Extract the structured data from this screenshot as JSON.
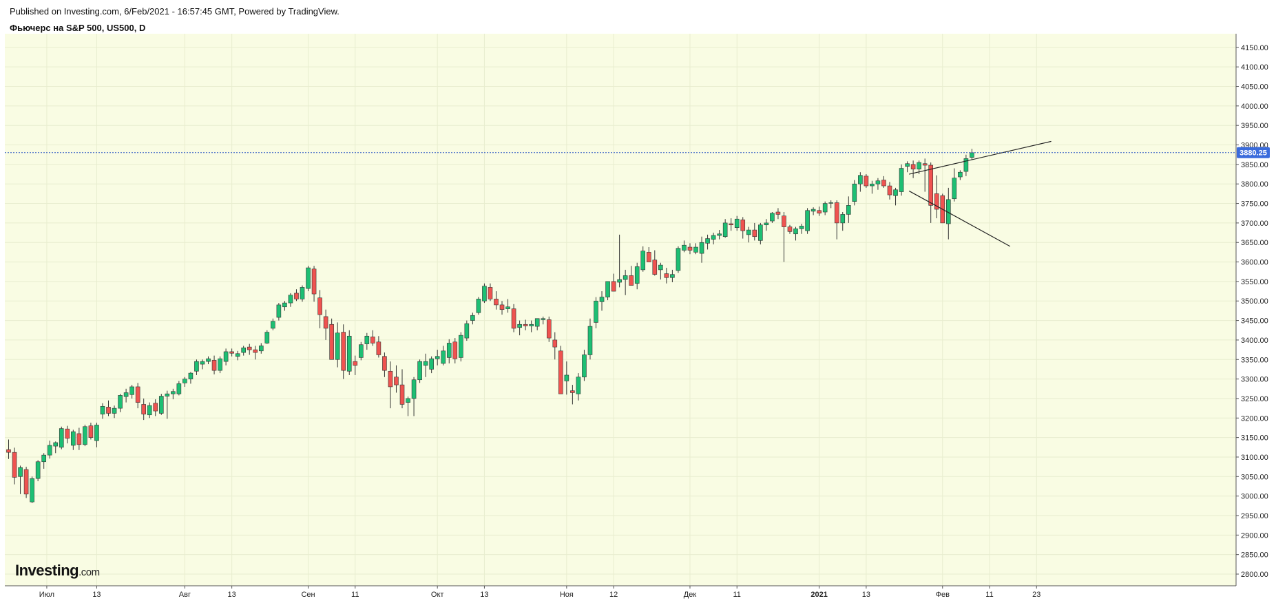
{
  "header": {
    "published": "Published on Investing.com, 6/Feb/2021 - 16:57:45 GMT, Powered by TradingView.",
    "instrument": "Фьючерс на S&P 500, US500, D"
  },
  "logo": {
    "main": "Investing",
    "suffix": ".com"
  },
  "colors": {
    "background": "#f9fce3",
    "up": "#1dbf73",
    "down": "#ef5350",
    "wick": "#333333",
    "price_line": "#2f59c4",
    "price_label_bg": "#3a6bdc",
    "trendline": "#222222",
    "grid": "#e8edcf"
  },
  "chart_data": {
    "type": "candlestick",
    "title": "Фьючерс на S&P 500, US500, D",
    "y_axis": {
      "min": 2770,
      "max": 4185,
      "ticks": [
        2800,
        2850,
        2900,
        2950,
        3000,
        3050,
        3100,
        3150,
        3200,
        3250,
        3300,
        3350,
        3400,
        3450,
        3500,
        3550,
        3600,
        3650,
        3700,
        3750,
        3800,
        3850,
        3900,
        3950,
        4000,
        4050,
        4100,
        4150
      ],
      "tick_labels": [
        "2800.00",
        "2850.00",
        "2900.00",
        "2950.00",
        "3000.00",
        "3050.00",
        "3100.00",
        "3150.00",
        "3200.00",
        "3250.00",
        "3300.00",
        "3350.00",
        "3400.00",
        "3450.00",
        "3500.00",
        "3550.00",
        "3600.00",
        "3650.00",
        "3700.00",
        "3750.00",
        "3800.00",
        "3850.00",
        "3900.00",
        "3950.00",
        "4000.00",
        "4050.00",
        "4100.00",
        "4150.00"
      ]
    },
    "x_axis": {
      "labels": [
        {
          "text": "Июл",
          "index": 6.5,
          "bold": false
        },
        {
          "text": "13",
          "index": 15,
          "bold": false
        },
        {
          "text": "Авг",
          "index": 30,
          "bold": false
        },
        {
          "text": "13",
          "index": 38,
          "bold": false
        },
        {
          "text": "Сен",
          "index": 51,
          "bold": false
        },
        {
          "text": "11",
          "index": 59,
          "bold": false
        },
        {
          "text": "Окт",
          "index": 73,
          "bold": false
        },
        {
          "text": "13",
          "index": 81,
          "bold": false
        },
        {
          "text": "Ноя",
          "index": 95,
          "bold": false
        },
        {
          "text": "12",
          "index": 103,
          "bold": false
        },
        {
          "text": "Дек",
          "index": 116,
          "bold": false
        },
        {
          "text": "11",
          "index": 124,
          "bold": false
        },
        {
          "text": "2021",
          "index": 138,
          "bold": true
        },
        {
          "text": "13",
          "index": 146,
          "bold": false
        },
        {
          "text": "Фев",
          "index": 159,
          "bold": false
        },
        {
          "text": "11",
          "index": 167,
          "bold": false
        },
        {
          "text": "23",
          "index": 175,
          "bold": false
        }
      ]
    },
    "last_price": 3880.25,
    "last_price_label": "3880.25",
    "candles": [
      [
        3119,
        3145,
        3095,
        3112
      ],
      [
        3112,
        3124,
        3030,
        3048
      ],
      [
        3050,
        3078,
        3005,
        3073
      ],
      [
        3068,
        3075,
        2995,
        3005
      ],
      [
        2985,
        3050,
        2982,
        3045
      ],
      [
        3045,
        3092,
        3038,
        3088
      ],
      [
        3088,
        3110,
        3070,
        3105
      ],
      [
        3105,
        3142,
        3096,
        3130
      ],
      [
        3128,
        3140,
        3110,
        3137
      ],
      [
        3125,
        3178,
        3120,
        3173
      ],
      [
        3172,
        3180,
        3135,
        3148
      ],
      [
        3130,
        3170,
        3118,
        3165
      ],
      [
        3160,
        3175,
        3118,
        3132
      ],
      [
        3132,
        3183,
        3128,
        3178
      ],
      [
        3180,
        3188,
        3145,
        3150
      ],
      [
        3142,
        3188,
        3125,
        3182
      ],
      [
        3210,
        3238,
        3198,
        3230
      ],
      [
        3228,
        3245,
        3205,
        3212
      ],
      [
        3212,
        3232,
        3200,
        3225
      ],
      [
        3225,
        3262,
        3215,
        3258
      ],
      [
        3255,
        3275,
        3240,
        3265
      ],
      [
        3260,
        3285,
        3250,
        3280
      ],
      [
        3280,
        3290,
        3225,
        3240
      ],
      [
        3235,
        3250,
        3195,
        3210
      ],
      [
        3208,
        3240,
        3200,
        3232
      ],
      [
        3238,
        3248,
        3205,
        3218
      ],
      [
        3212,
        3262,
        3208,
        3256
      ],
      [
        3256,
        3270,
        3198,
        3262
      ],
      [
        3262,
        3275,
        3248,
        3268
      ],
      [
        3262,
        3295,
        3258,
        3288
      ],
      [
        3290,
        3305,
        3280,
        3300
      ],
      [
        3300,
        3318,
        3288,
        3315
      ],
      [
        3320,
        3350,
        3310,
        3345
      ],
      [
        3338,
        3350,
        3325,
        3345
      ],
      [
        3345,
        3358,
        3338,
        3352
      ],
      [
        3348,
        3360,
        3312,
        3322
      ],
      [
        3322,
        3358,
        3315,
        3352
      ],
      [
        3345,
        3378,
        3335,
        3370
      ],
      [
        3370,
        3378,
        3358,
        3366
      ],
      [
        3358,
        3372,
        3348,
        3365
      ],
      [
        3368,
        3385,
        3360,
        3380
      ],
      [
        3382,
        3390,
        3362,
        3375
      ],
      [
        3375,
        3385,
        3350,
        3368
      ],
      [
        3372,
        3392,
        3365,
        3385
      ],
      [
        3392,
        3425,
        3390,
        3420
      ],
      [
        3430,
        3455,
        3425,
        3448
      ],
      [
        3458,
        3495,
        3450,
        3490
      ],
      [
        3485,
        3500,
        3475,
        3495
      ],
      [
        3495,
        3520,
        3485,
        3515
      ],
      [
        3520,
        3530,
        3500,
        3505
      ],
      [
        3505,
        3540,
        3498,
        3535
      ],
      [
        3532,
        3590,
        3525,
        3585
      ],
      [
        3582,
        3590,
        3498,
        3518
      ],
      [
        3508,
        3528,
        3430,
        3465
      ],
      [
        3460,
        3478,
        3400,
        3430
      ],
      [
        3440,
        3455,
        3350,
        3350
      ],
      [
        3350,
        3445,
        3330,
        3418
      ],
      [
        3420,
        3440,
        3300,
        3322
      ],
      [
        3320,
        3425,
        3310,
        3410
      ],
      [
        3345,
        3360,
        3310,
        3335
      ],
      [
        3355,
        3395,
        3348,
        3388
      ],
      [
        3390,
        3418,
        3375,
        3410
      ],
      [
        3408,
        3425,
        3385,
        3392
      ],
      [
        3395,
        3410,
        3355,
        3362
      ],
      [
        3358,
        3368,
        3305,
        3322
      ],
      [
        3320,
        3345,
        3225,
        3280
      ],
      [
        3305,
        3335,
        3265,
        3285
      ],
      [
        3285,
        3325,
        3225,
        3235
      ],
      [
        3240,
        3255,
        3205,
        3250
      ],
      [
        3250,
        3305,
        3205,
        3298
      ],
      [
        3298,
        3350,
        3290,
        3345
      ],
      [
        3335,
        3365,
        3305,
        3345
      ],
      [
        3325,
        3358,
        3315,
        3352
      ],
      [
        3352,
        3375,
        3335,
        3358
      ],
      [
        3340,
        3385,
        3335,
        3372
      ],
      [
        3355,
        3402,
        3340,
        3392
      ],
      [
        3395,
        3405,
        3340,
        3352
      ],
      [
        3355,
        3420,
        3345,
        3412
      ],
      [
        3405,
        3450,
        3398,
        3442
      ],
      [
        3450,
        3470,
        3440,
        3463
      ],
      [
        3470,
        3510,
        3465,
        3505
      ],
      [
        3500,
        3545,
        3495,
        3538
      ],
      [
        3535,
        3545,
        3500,
        3505
      ],
      [
        3505,
        3525,
        3478,
        3490
      ],
      [
        3490,
        3500,
        3465,
        3478
      ],
      [
        3480,
        3505,
        3470,
        3485
      ],
      [
        3480,
        3492,
        3420,
        3430
      ],
      [
        3432,
        3450,
        3412,
        3440
      ],
      [
        3440,
        3452,
        3425,
        3436
      ],
      [
        3436,
        3450,
        3420,
        3440
      ],
      [
        3435,
        3455,
        3425,
        3455
      ],
      [
        3452,
        3460,
        3440,
        3455
      ],
      [
        3452,
        3460,
        3395,
        3405
      ],
      [
        3400,
        3420,
        3350,
        3382
      ],
      [
        3372,
        3385,
        3262,
        3262
      ],
      [
        3295,
        3345,
        3260,
        3310
      ],
      [
        3270,
        3285,
        3235,
        3265
      ],
      [
        3262,
        3315,
        3245,
        3305
      ],
      [
        3305,
        3375,
        3295,
        3362
      ],
      [
        3362,
        3455,
        3350,
        3435
      ],
      [
        3445,
        3510,
        3430,
        3500
      ],
      [
        3498,
        3525,
        3475,
        3510
      ],
      [
        3510,
        3550,
        3502,
        3550
      ],
      [
        3550,
        3570,
        3525,
        3525
      ],
      [
        3548,
        3670,
        3535,
        3555
      ],
      [
        3555,
        3580,
        3515,
        3565
      ],
      [
        3565,
        3590,
        3540,
        3540
      ],
      [
        3545,
        3598,
        3530,
        3588
      ],
      [
        3580,
        3640,
        3575,
        3628
      ],
      [
        3625,
        3638,
        3600,
        3600
      ],
      [
        3605,
        3630,
        3565,
        3568
      ],
      [
        3580,
        3598,
        3555,
        3592
      ],
      [
        3570,
        3585,
        3545,
        3560
      ],
      [
        3560,
        3580,
        3548,
        3568
      ],
      [
        3578,
        3640,
        3572,
        3635
      ],
      [
        3630,
        3655,
        3625,
        3643
      ],
      [
        3638,
        3648,
        3620,
        3630
      ],
      [
        3625,
        3648,
        3620,
        3638
      ],
      [
        3622,
        3665,
        3598,
        3650
      ],
      [
        3648,
        3670,
        3632,
        3660
      ],
      [
        3658,
        3675,
        3645,
        3668
      ],
      [
        3668,
        3682,
        3658,
        3672
      ],
      [
        3665,
        3710,
        3662,
        3700
      ],
      [
        3698,
        3712,
        3680,
        3695
      ],
      [
        3688,
        3718,
        3680,
        3710
      ],
      [
        3708,
        3715,
        3660,
        3680
      ],
      [
        3670,
        3690,
        3650,
        3682
      ],
      [
        3682,
        3700,
        3655,
        3665
      ],
      [
        3655,
        3700,
        3645,
        3695
      ],
      [
        3695,
        3710,
        3680,
        3700
      ],
      [
        3705,
        3728,
        3700,
        3725
      ],
      [
        3728,
        3738,
        3710,
        3722
      ],
      [
        3718,
        3728,
        3600,
        3690
      ],
      [
        3690,
        3695,
        3672,
        3678
      ],
      [
        3672,
        3690,
        3655,
        3685
      ],
      [
        3685,
        3698,
        3672,
        3692
      ],
      [
        3680,
        3738,
        3672,
        3732
      ],
      [
        3730,
        3740,
        3720,
        3735
      ],
      [
        3732,
        3742,
        3718,
        3725
      ],
      [
        3728,
        3755,
        3720,
        3750
      ],
      [
        3752,
        3758,
        3738,
        3752
      ],
      [
        3752,
        3758,
        3658,
        3700
      ],
      [
        3700,
        3728,
        3680,
        3722
      ],
      [
        3722,
        3768,
        3700,
        3745
      ],
      [
        3755,
        3810,
        3745,
        3800
      ],
      [
        3800,
        3830,
        3780,
        3822
      ],
      [
        3820,
        3825,
        3790,
        3795
      ],
      [
        3795,
        3808,
        3775,
        3800
      ],
      [
        3800,
        3815,
        3785,
        3808
      ],
      [
        3810,
        3820,
        3790,
        3795
      ],
      [
        3795,
        3805,
        3760,
        3772
      ],
      [
        3770,
        3790,
        3745,
        3785
      ],
      [
        3780,
        3850,
        3770,
        3840
      ],
      [
        3845,
        3858,
        3830,
        3852
      ],
      [
        3850,
        3860,
        3815,
        3838
      ],
      [
        3838,
        3860,
        3825,
        3855
      ],
      [
        3852,
        3865,
        3780,
        3848
      ],
      [
        3848,
        3855,
        3700,
        3745
      ],
      [
        3775,
        3822,
        3712,
        3735
      ],
      [
        3770,
        3775,
        3700,
        3700
      ],
      [
        3698,
        3790,
        3658,
        3760
      ],
      [
        3762,
        3840,
        3755,
        3815
      ],
      [
        3818,
        3835,
        3810,
        3830
      ],
      [
        3832,
        3875,
        3820,
        3865
      ],
      [
        3868,
        3890,
        3862,
        3880
      ]
    ],
    "trendlines": [
      {
        "from": [
          153.3,
          3825
        ],
        "to": [
          177.5,
          3909
        ]
      },
      {
        "from": [
          153.3,
          3782
        ],
        "to": [
          170.5,
          3640
        ]
      }
    ]
  }
}
